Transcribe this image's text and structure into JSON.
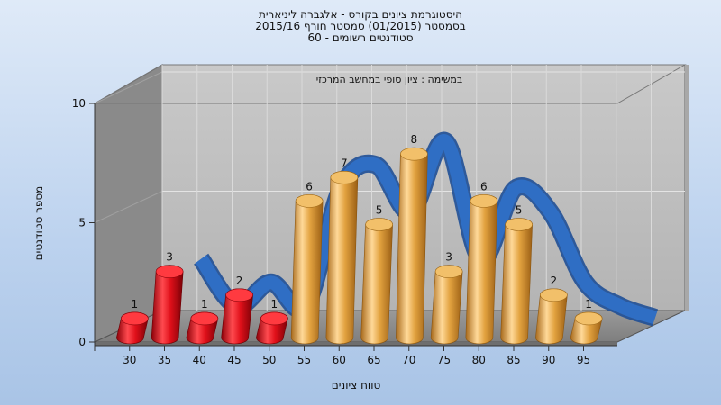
{
  "title_lines": [
    "היסטוגרמת ציונים בקורס - אלגברה ליניארית",
    "בסמסטר  (01/2015)  סמסטר חורף 2015/16",
    "סטודנטים רשומים - 60"
  ],
  "chart_data": {
    "type": "bar",
    "title": "היסטוגרמת ציונים בקורס - אלגברה ליניארית",
    "annotation": "במשימה : ציון סופי במחשב המרכזי",
    "xlabel": "טווח ציונים",
    "ylabel": "מספר סטודנטים",
    "ylim": [
      0,
      10
    ],
    "y_ticks": [
      0,
      5,
      10
    ],
    "x_tick_labels": [
      "30",
      "35",
      "40",
      "45",
      "50",
      "55",
      "60",
      "65",
      "70",
      "75",
      "80",
      "85",
      "90",
      "95"
    ],
    "categories": [
      "30",
      "35",
      "40",
      "45",
      "50",
      "55",
      "60",
      "65",
      "70",
      "75",
      "80",
      "85",
      "90",
      "95"
    ],
    "values": [
      1,
      3,
      1,
      2,
      1,
      6,
      7,
      5,
      8,
      3,
      6,
      5,
      2,
      1
    ],
    "bar_colors": [
      "#e0101a",
      "#e0101a",
      "#e0101a",
      "#e0101a",
      "#e0101a",
      "#e2a23f",
      "#e2a23f",
      "#e2a23f",
      "#e2a23f",
      "#e2a23f",
      "#e2a23f",
      "#e2a23f",
      "#e2a23f",
      "#e2a23f"
    ],
    "curve_color": "#2f6ec4",
    "grid": true
  }
}
